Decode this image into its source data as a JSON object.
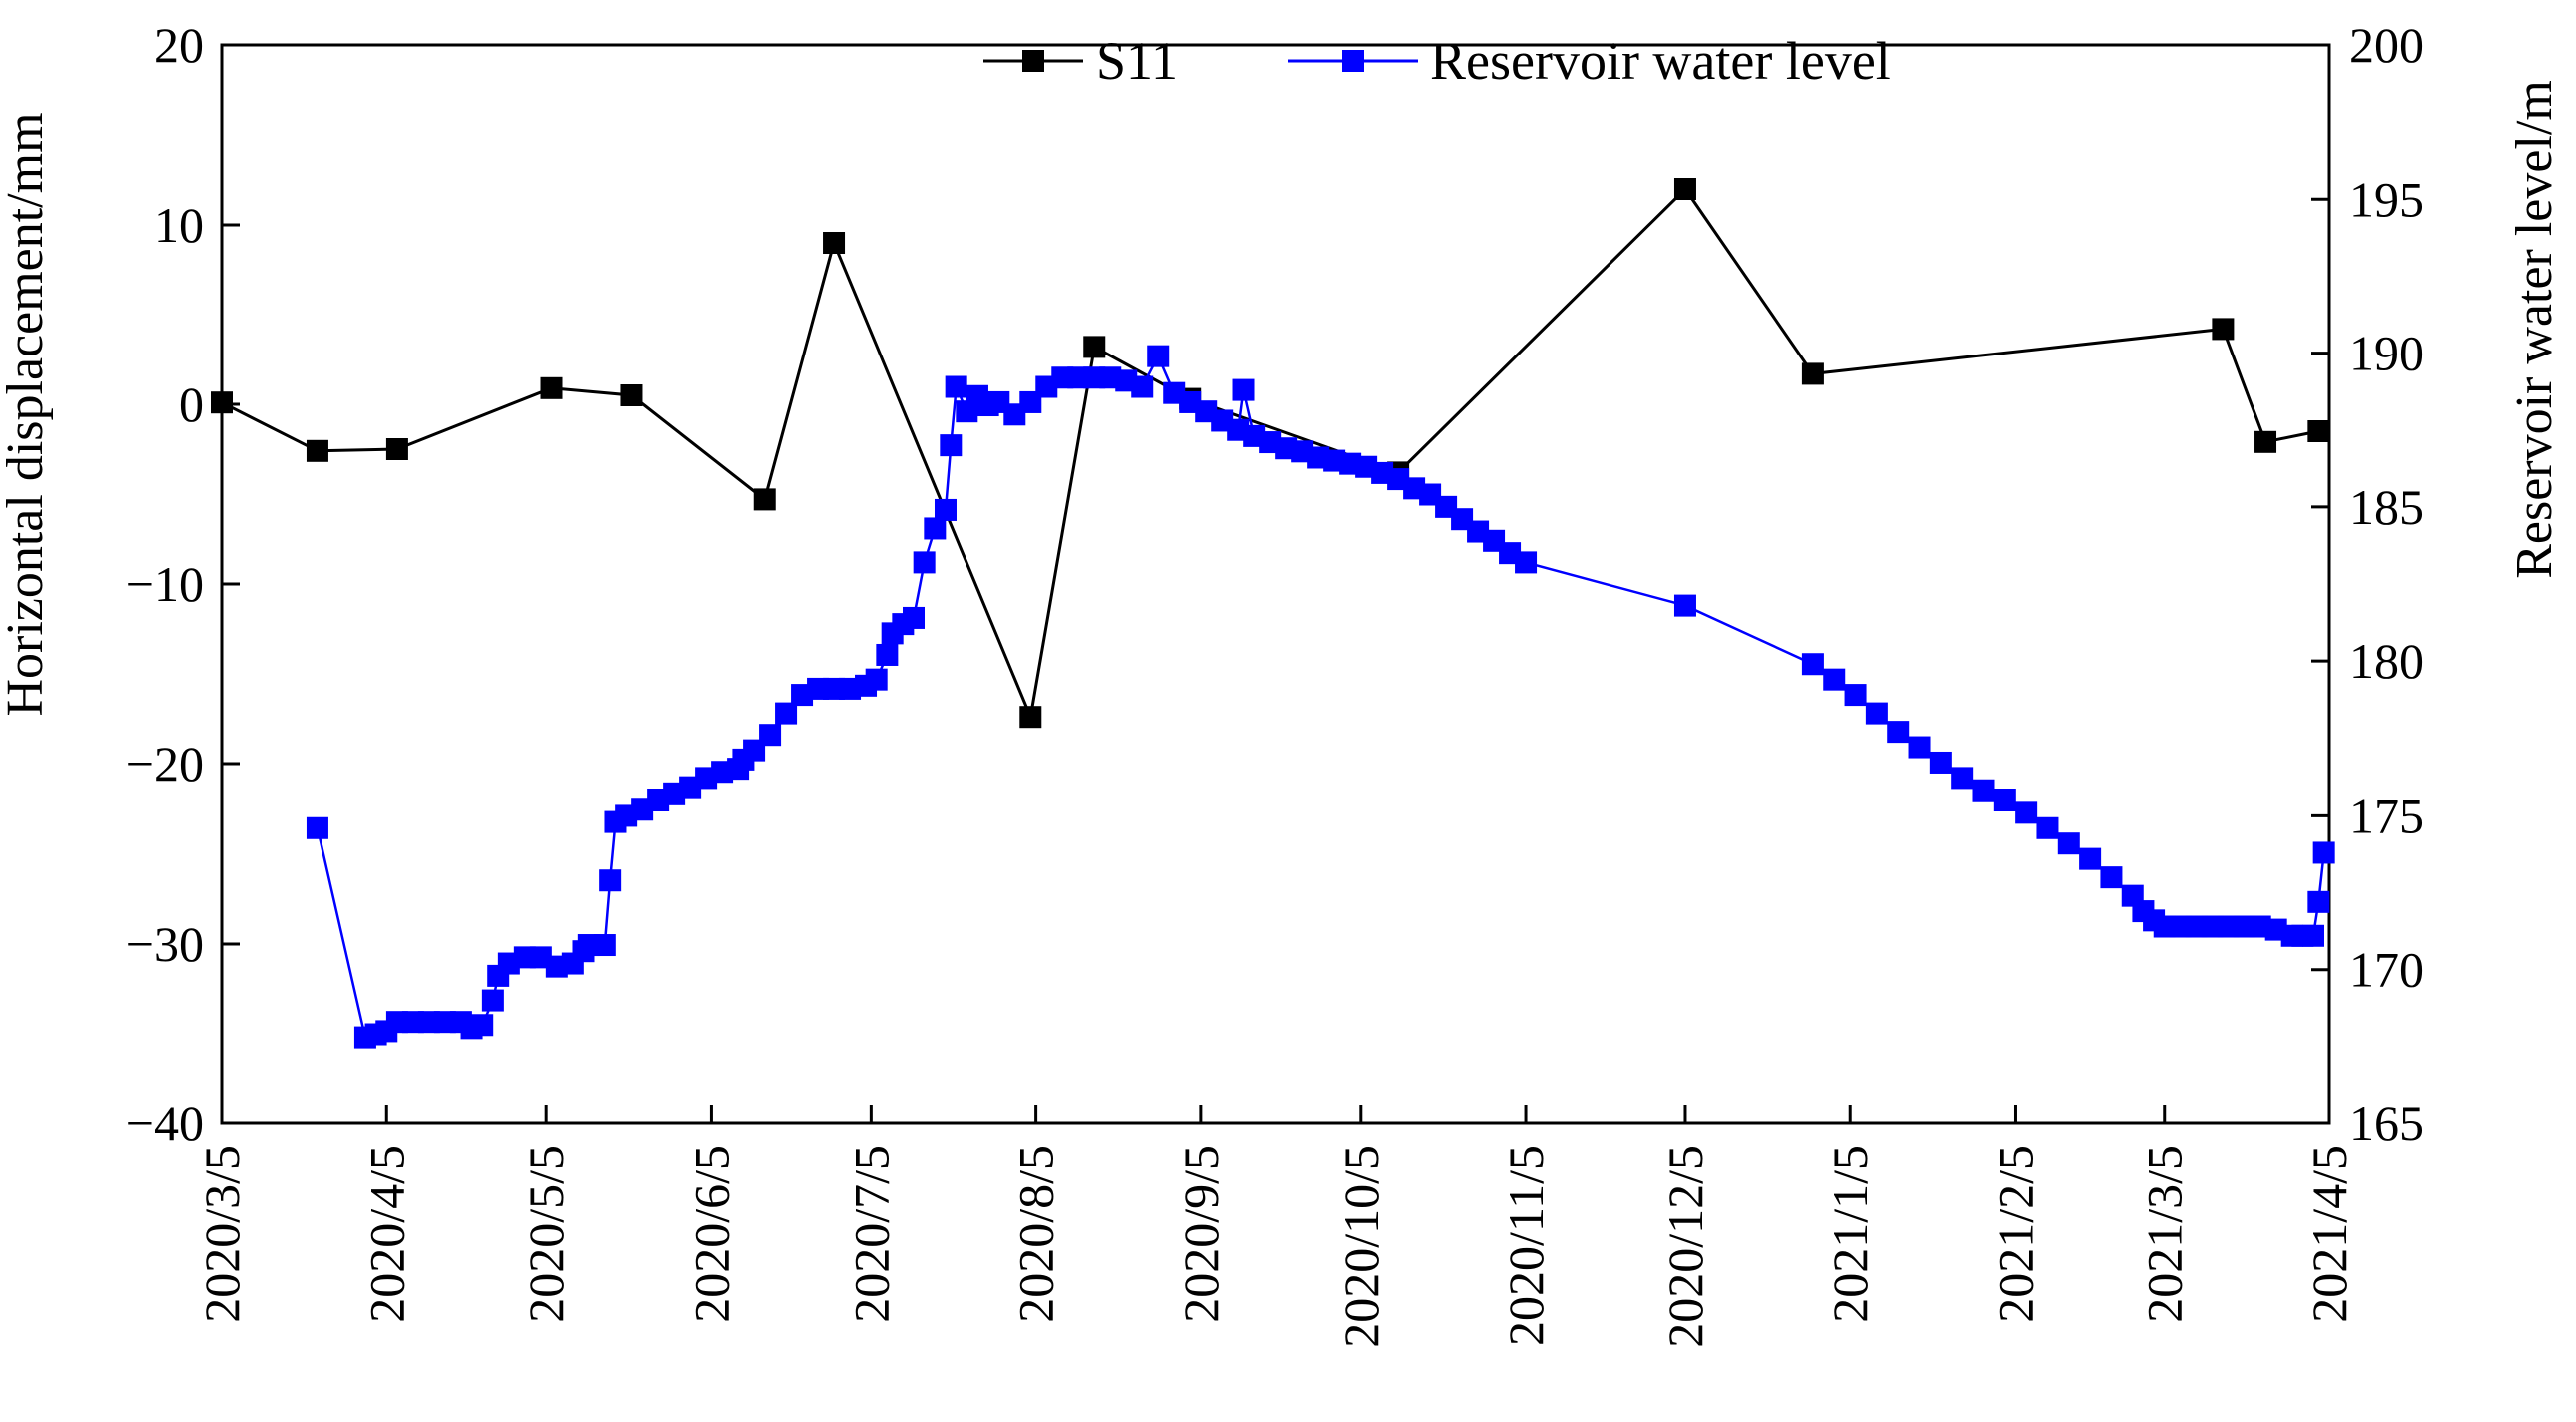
{
  "chart_data": {
    "type": "line",
    "x_axis": {
      "type": "date",
      "tick_labels": [
        "2020/3/5",
        "2020/4/5",
        "2020/5/5",
        "2020/6/5",
        "2020/7/5",
        "2020/8/5",
        "2020/9/5",
        "2020/10/5",
        "2020/11/5",
        "2020/12/5",
        "2021/1/5",
        "2021/2/5",
        "2021/3/5",
        "2021/4/5"
      ],
      "range": [
        "2020-03-05",
        "2021-04-05"
      ]
    },
    "y_left": {
      "label": "Horizontal displacement/mm",
      "ylim": [
        -40,
        20
      ],
      "ticks": [
        -40,
        -30,
        -20,
        -10,
        0,
        10,
        20
      ]
    },
    "y_right": {
      "label": "Reservoir water level/m",
      "ylim": [
        165,
        200
      ],
      "ticks": [
        165,
        170,
        175,
        180,
        185,
        190,
        195,
        200
      ]
    },
    "legend": {
      "placement": "top-center"
    },
    "grid": false,
    "colors": {
      "S11": "#000000",
      "water": "#0000ff"
    },
    "series": [
      {
        "name": "S11",
        "axis": "left",
        "marker": "square",
        "points": [
          [
            "2020-03-05",
            0.1
          ],
          [
            "2020-03-23",
            -2.6
          ],
          [
            "2020-04-07",
            -2.5
          ],
          [
            "2020-05-06",
            0.9
          ],
          [
            "2020-05-21",
            0.5
          ],
          [
            "2020-06-15",
            -5.3
          ],
          [
            "2020-06-28",
            9.0
          ],
          [
            "2020-08-04",
            -17.4
          ],
          [
            "2020-08-16",
            3.2
          ],
          [
            "2020-09-03",
            0.3
          ],
          [
            "2020-10-12",
            -3.8
          ],
          [
            "2020-12-05",
            12.0
          ],
          [
            "2020-12-29",
            1.7
          ],
          [
            "2021-03-16",
            4.2
          ],
          [
            "2021-03-24",
            -2.1
          ],
          [
            "2021-04-03",
            -1.5
          ]
        ]
      },
      {
        "name": "Reservoir water level",
        "axis": "right",
        "marker": "square",
        "points": [
          [
            "2020-03-23",
            174.6
          ],
          [
            "2020-04-01",
            167.8
          ],
          [
            "2020-04-03",
            167.9
          ],
          [
            "2020-04-05",
            168.0
          ],
          [
            "2020-04-07",
            168.3
          ],
          [
            "2020-04-10",
            168.3
          ],
          [
            "2020-04-13",
            168.3
          ],
          [
            "2020-04-16",
            168.3
          ],
          [
            "2020-04-19",
            168.3
          ],
          [
            "2020-04-21",
            168.1
          ],
          [
            "2020-04-23",
            168.2
          ],
          [
            "2020-04-25",
            169.0
          ],
          [
            "2020-04-26",
            169.8
          ],
          [
            "2020-04-28",
            170.2
          ],
          [
            "2020-05-01",
            170.4
          ],
          [
            "2020-05-04",
            170.4
          ],
          [
            "2020-05-07",
            170.1
          ],
          [
            "2020-05-10",
            170.2
          ],
          [
            "2020-05-12",
            170.6
          ],
          [
            "2020-05-13",
            170.8
          ],
          [
            "2020-05-16",
            170.8
          ],
          [
            "2020-05-17",
            172.9
          ],
          [
            "2020-05-18",
            174.8
          ],
          [
            "2020-05-20",
            175.0
          ],
          [
            "2020-05-23",
            175.2
          ],
          [
            "2020-05-26",
            175.5
          ],
          [
            "2020-05-29",
            175.7
          ],
          [
            "2020-06-01",
            175.9
          ],
          [
            "2020-06-04",
            176.2
          ],
          [
            "2020-06-07",
            176.4
          ],
          [
            "2020-06-10",
            176.5
          ],
          [
            "2020-06-11",
            176.8
          ],
          [
            "2020-06-13",
            177.1
          ],
          [
            "2020-06-16",
            177.6
          ],
          [
            "2020-06-19",
            178.3
          ],
          [
            "2020-06-22",
            178.9
          ],
          [
            "2020-06-25",
            179.1
          ],
          [
            "2020-06-28",
            179.1
          ],
          [
            "2020-07-01",
            179.1
          ],
          [
            "2020-07-04",
            179.2
          ],
          [
            "2020-07-06",
            179.4
          ],
          [
            "2020-07-08",
            180.2
          ],
          [
            "2020-07-09",
            180.9
          ],
          [
            "2020-07-11",
            181.2
          ],
          [
            "2020-07-13",
            181.4
          ],
          [
            "2020-07-15",
            183.2
          ],
          [
            "2020-07-17",
            184.3
          ],
          [
            "2020-07-19",
            184.9
          ],
          [
            "2020-07-20",
            187.0
          ],
          [
            "2020-07-21",
            188.9
          ],
          [
            "2020-07-23",
            188.1
          ],
          [
            "2020-07-25",
            188.6
          ],
          [
            "2020-07-27",
            188.3
          ],
          [
            "2020-07-29",
            188.4
          ],
          [
            "2020-08-01",
            188.0
          ],
          [
            "2020-08-04",
            188.4
          ],
          [
            "2020-08-07",
            188.9
          ],
          [
            "2020-08-10",
            189.2
          ],
          [
            "2020-08-13",
            189.2
          ],
          [
            "2020-08-16",
            189.2
          ],
          [
            "2020-08-19",
            189.2
          ],
          [
            "2020-08-22",
            189.1
          ],
          [
            "2020-08-25",
            188.9
          ],
          [
            "2020-08-28",
            189.9
          ],
          [
            "2020-08-31",
            188.7
          ],
          [
            "2020-09-03",
            188.4
          ],
          [
            "2020-09-06",
            188.1
          ],
          [
            "2020-09-09",
            187.8
          ],
          [
            "2020-09-12",
            187.5
          ],
          [
            "2020-09-13",
            188.8
          ],
          [
            "2020-09-15",
            187.3
          ],
          [
            "2020-09-18",
            187.1
          ],
          [
            "2020-09-21",
            186.9
          ],
          [
            "2020-09-24",
            186.8
          ],
          [
            "2020-09-27",
            186.6
          ],
          [
            "2020-09-30",
            186.5
          ],
          [
            "2020-10-03",
            186.4
          ],
          [
            "2020-10-06",
            186.3
          ],
          [
            "2020-10-09",
            186.1
          ],
          [
            "2020-10-12",
            185.9
          ],
          [
            "2020-10-15",
            185.6
          ],
          [
            "2020-10-18",
            185.4
          ],
          [
            "2020-10-21",
            185.0
          ],
          [
            "2020-10-24",
            184.6
          ],
          [
            "2020-10-27",
            184.2
          ],
          [
            "2020-10-30",
            183.9
          ],
          [
            "2020-11-02",
            183.5
          ],
          [
            "2020-11-05",
            183.2
          ],
          [
            "2020-12-05",
            181.8
          ],
          [
            "2020-12-29",
            179.9
          ],
          [
            "2021-01-02",
            179.4
          ],
          [
            "2021-01-06",
            178.9
          ],
          [
            "2021-01-10",
            178.3
          ],
          [
            "2021-01-14",
            177.7
          ],
          [
            "2021-01-18",
            177.2
          ],
          [
            "2021-01-22",
            176.7
          ],
          [
            "2021-01-26",
            176.2
          ],
          [
            "2021-01-30",
            175.8
          ],
          [
            "2021-02-03",
            175.5
          ],
          [
            "2021-02-07",
            175.1
          ],
          [
            "2021-02-11",
            174.6
          ],
          [
            "2021-02-15",
            174.1
          ],
          [
            "2021-02-19",
            173.6
          ],
          [
            "2021-02-23",
            173.0
          ],
          [
            "2021-02-27",
            172.4
          ],
          [
            "2021-03-01",
            171.9
          ],
          [
            "2021-03-03",
            171.6
          ],
          [
            "2021-03-05",
            171.4
          ],
          [
            "2021-03-08",
            171.4
          ],
          [
            "2021-03-11",
            171.4
          ],
          [
            "2021-03-14",
            171.4
          ],
          [
            "2021-03-17",
            171.4
          ],
          [
            "2021-03-20",
            171.4
          ],
          [
            "2021-03-23",
            171.4
          ],
          [
            "2021-03-26",
            171.3
          ],
          [
            "2021-03-29",
            171.1
          ],
          [
            "2021-03-31",
            171.1
          ],
          [
            "2021-04-02",
            171.1
          ],
          [
            "2021-04-03",
            172.2
          ],
          [
            "2021-04-04",
            173.8
          ]
        ]
      }
    ]
  }
}
